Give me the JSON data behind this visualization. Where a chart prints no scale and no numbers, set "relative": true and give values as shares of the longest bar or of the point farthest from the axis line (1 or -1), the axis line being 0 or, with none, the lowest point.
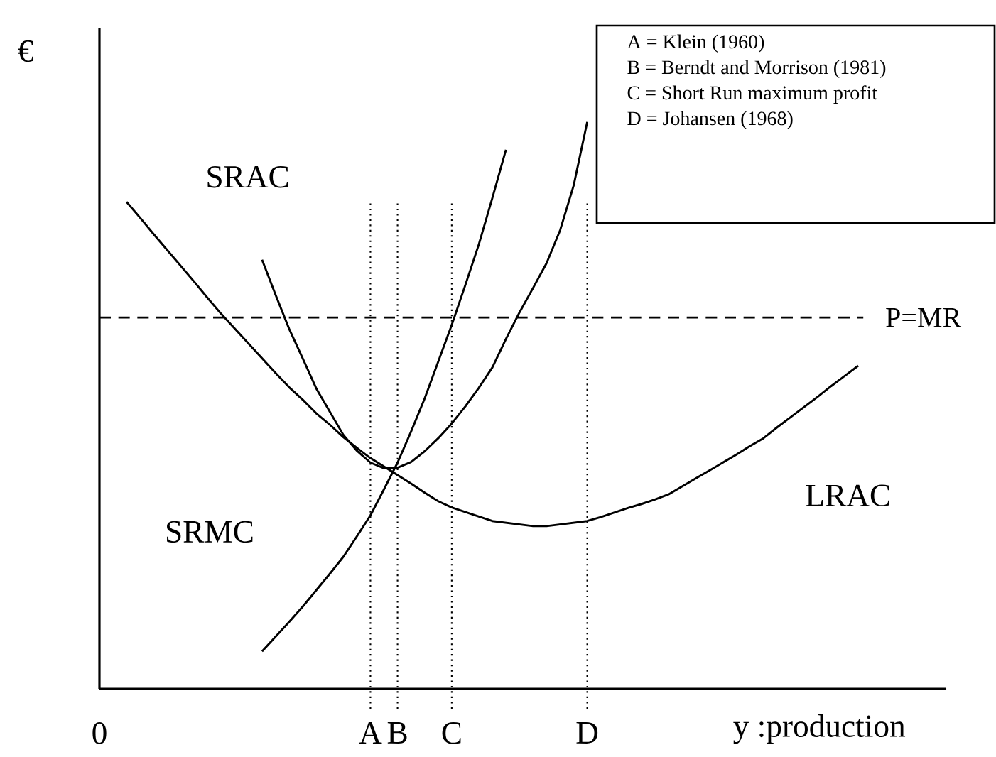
{
  "chart_data": {
    "type": "line",
    "relative": true,
    "xlabel": "y :production",
    "ylabel": "€",
    "legend": false,
    "marker": "none",
    "line_style": "solid",
    "grid": "x",
    "categories": [
      "0",
      null,
      null,
      null,
      null,
      null,
      null,
      null,
      null,
      null,
      null,
      null,
      null,
      null,
      null,
      null,
      null,
      null,
      null,
      null,
      "A",
      null,
      "B",
      null,
      null,
      null,
      "C",
      null,
      null,
      null,
      null,
      null,
      null,
      null,
      null,
      null,
      "D",
      null,
      null,
      null,
      null,
      null,
      null,
      null,
      null,
      null,
      null,
      null,
      null,
      null,
      null,
      null,
      null,
      null,
      null,
      null,
      null
    ],
    "series": [
      {
        "name": "LRAC",
        "color": "#000000",
        "values": [
          null,
          null,
          0.859,
          0.831,
          0.802,
          0.774,
          0.746,
          0.718,
          0.689,
          0.661,
          0.635,
          0.609,
          0.583,
          0.557,
          0.532,
          0.51,
          0.486,
          0.466,
          0.444,
          0.425,
          0.407,
          0.392,
          0.377,
          0.362,
          0.346,
          0.331,
          0.32,
          0.312,
          0.304,
          0.296,
          0.293,
          0.29,
          0.287,
          0.287,
          0.29,
          0.293,
          0.296,
          0.303,
          0.311,
          0.319,
          0.326,
          0.334,
          0.343,
          0.357,
          0.371,
          0.385,
          0.399,
          0.413,
          0.428,
          0.442,
          0.461,
          0.479,
          0.497,
          0.515,
          0.534,
          0.552,
          0.57
        ]
      },
      {
        "name": "SRAC",
        "color": "#000000",
        "values": [
          null,
          null,
          null,
          null,
          null,
          null,
          null,
          null,
          null,
          null,
          null,
          null,
          0.757,
          0.695,
          0.635,
          0.583,
          0.53,
          0.489,
          0.448,
          0.42,
          0.399,
          0.389,
          0.39,
          0.4,
          0.419,
          0.442,
          0.468,
          0.498,
          0.531,
          0.567,
          0.617,
          0.664,
          0.707,
          0.751,
          0.809,
          0.888,
          1.0,
          null,
          null,
          null,
          null,
          null,
          null,
          null,
          null,
          null,
          null,
          null,
          null,
          null,
          null,
          null,
          null,
          null,
          null,
          null,
          null
        ]
      },
      {
        "name": "SRMC",
        "color": "#000000",
        "values": [
          null,
          null,
          null,
          null,
          null,
          null,
          null,
          null,
          null,
          null,
          null,
          null,
          0.066,
          0.092,
          0.118,
          0.145,
          0.174,
          0.203,
          0.233,
          0.269,
          0.306,
          0.352,
          0.399,
          0.454,
          0.512,
          0.577,
          0.642,
          0.712,
          0.784,
          0.866,
          0.951,
          null,
          null,
          null,
          null,
          null,
          null,
          null,
          null,
          null,
          null,
          null,
          null,
          null,
          null,
          null,
          null,
          null,
          null,
          null,
          null,
          null,
          null,
          null,
          null,
          null,
          null
        ]
      }
    ],
    "ref_lines": [
      {
        "axis": "y",
        "value": 0.655,
        "label": "P=MR",
        "line_style": "dashed",
        "color": "#000000"
      }
    ],
    "annotations": [
      "A = Klein (1960)",
      "B = Berndt and Morrison (1981)",
      "C = Short Run maximum profit",
      "D = Johansen (1968)"
    ]
  }
}
